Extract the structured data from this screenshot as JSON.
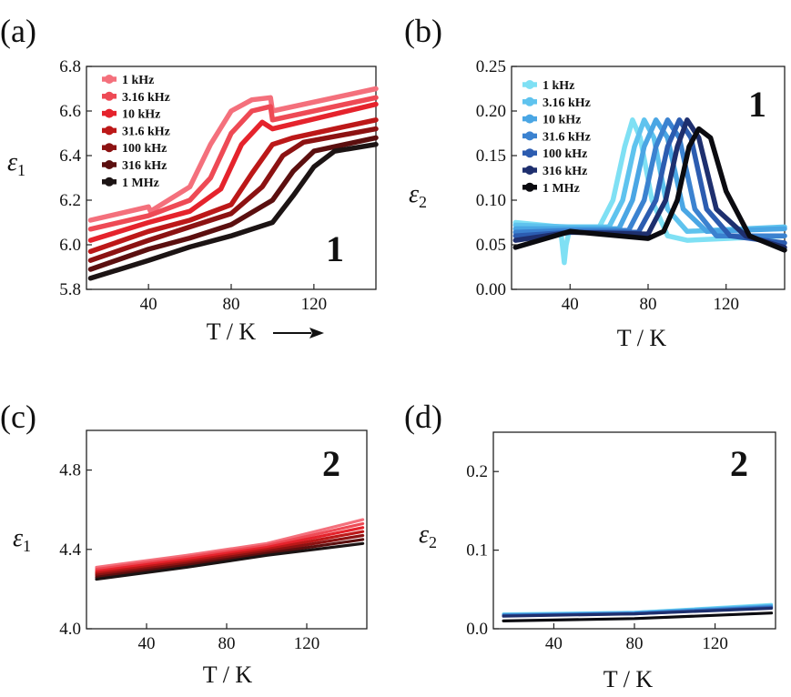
{
  "chart_data": [
    {
      "type": "line",
      "panel_label": "(a)",
      "compound": "1",
      "ylabel": "ε1",
      "xlabel": "T / K",
      "xlim": [
        10,
        150
      ],
      "ylim": [
        5.8,
        6.8
      ],
      "xticks": [
        "40",
        "80",
        "120"
      ],
      "yticks": [
        "5.8",
        "6.0",
        "6.2",
        "6.4",
        "6.6",
        "6.8"
      ],
      "legend_position": "top-left",
      "series": [
        {
          "name": "1 kHz",
          "color": "#f4707c",
          "x": [
            12,
            40,
            41,
            60,
            70,
            80,
            90,
            99,
            100,
            150
          ],
          "y": [
            6.11,
            6.17,
            6.15,
            6.26,
            6.45,
            6.6,
            6.65,
            6.66,
            6.6,
            6.7
          ]
        },
        {
          "name": "3.16 kHz",
          "color": "#ee4a55",
          "x": [
            12,
            40,
            60,
            70,
            80,
            90,
            99,
            100,
            150
          ],
          "y": [
            6.07,
            6.13,
            6.2,
            6.3,
            6.5,
            6.6,
            6.62,
            6.56,
            6.66
          ]
        },
        {
          "name": "10 kHz",
          "color": "#e5232c",
          "x": [
            12,
            40,
            60,
            75,
            85,
            95,
            100,
            150
          ],
          "y": [
            6.02,
            6.1,
            6.15,
            6.25,
            6.45,
            6.55,
            6.52,
            6.63
          ]
        },
        {
          "name": "31.6 kHz",
          "color": "#bc1818",
          "x": [
            12,
            40,
            60,
            80,
            90,
            100,
            110,
            150
          ],
          "y": [
            5.97,
            6.06,
            6.11,
            6.18,
            6.32,
            6.45,
            6.48,
            6.56
          ]
        },
        {
          "name": "100 kHz",
          "color": "#8c1212",
          "x": [
            12,
            40,
            60,
            80,
            95,
            105,
            115,
            150
          ],
          "y": [
            5.93,
            6.02,
            6.08,
            6.14,
            6.26,
            6.4,
            6.46,
            6.52
          ]
        },
        {
          "name": "316 kHz",
          "color": "#5b0f0f",
          "x": [
            12,
            40,
            60,
            80,
            100,
            110,
            120,
            150
          ],
          "y": [
            5.89,
            5.98,
            6.03,
            6.09,
            6.2,
            6.33,
            6.42,
            6.48
          ]
        },
        {
          "name": "1 MHz",
          "color": "#1c1414",
          "x": [
            12,
            40,
            60,
            80,
            100,
            110,
            120,
            130,
            150
          ],
          "y": [
            5.85,
            5.93,
            5.99,
            6.04,
            6.1,
            6.22,
            6.35,
            6.42,
            6.45
          ]
        }
      ]
    },
    {
      "type": "line",
      "panel_label": "(b)",
      "compound": "1",
      "ylabel": "ε2",
      "xlabel": "T / K",
      "xlim": [
        10,
        150
      ],
      "ylim": [
        0,
        0.25
      ],
      "xticks": [
        "40",
        "80",
        "120"
      ],
      "yticks": [
        "0.00",
        "0.05",
        "0.10",
        "0.15",
        "0.20",
        "0.25"
      ],
      "legend_position": "top-left",
      "series": [
        {
          "name": "1 kHz",
          "color": "#7fe0f4",
          "x": [
            12,
            35,
            37,
            38,
            40,
            55,
            62,
            68,
            72,
            76,
            82,
            90,
            100,
            150
          ],
          "y": [
            0.075,
            0.07,
            0.03,
            0.05,
            0.07,
            0.07,
            0.1,
            0.16,
            0.19,
            0.17,
            0.1,
            0.06,
            0.055,
            0.06
          ]
        },
        {
          "name": "3.16 kHz",
          "color": "#5fc3ee",
          "x": [
            12,
            40,
            60,
            67,
            73,
            78,
            83,
            90,
            100,
            150
          ],
          "y": [
            0.072,
            0.07,
            0.07,
            0.1,
            0.16,
            0.19,
            0.17,
            0.09,
            0.065,
            0.07
          ]
        },
        {
          "name": "10 kHz",
          "color": "#4aa6e4",
          "x": [
            12,
            40,
            65,
            72,
            78,
            84,
            90,
            98,
            110,
            150
          ],
          "y": [
            0.068,
            0.068,
            0.068,
            0.1,
            0.16,
            0.19,
            0.17,
            0.09,
            0.065,
            0.068
          ]
        },
        {
          "name": "31.6 kHz",
          "color": "#3b82d0",
          "x": [
            12,
            40,
            70,
            78,
            84,
            90,
            96,
            104,
            115,
            150
          ],
          "y": [
            0.064,
            0.066,
            0.066,
            0.1,
            0.16,
            0.19,
            0.17,
            0.09,
            0.06,
            0.06
          ]
        },
        {
          "name": "100 kHz",
          "color": "#2c5cb0",
          "x": [
            12,
            40,
            75,
            84,
            90,
            96,
            102,
            110,
            122,
            150
          ],
          "y": [
            0.06,
            0.064,
            0.064,
            0.1,
            0.16,
            0.19,
            0.17,
            0.09,
            0.06,
            0.052
          ]
        },
        {
          "name": "316 kHz",
          "color": "#1e2f6e",
          "x": [
            12,
            40,
            80,
            89,
            95,
            100,
            106,
            115,
            130,
            150
          ],
          "y": [
            0.055,
            0.064,
            0.062,
            0.1,
            0.16,
            0.19,
            0.17,
            0.09,
            0.06,
            0.047
          ]
        },
        {
          "name": "1 MHz",
          "color": "#0b0b10",
          "x": [
            12,
            40,
            80,
            88,
            95,
            101,
            106,
            112,
            120,
            132,
            150
          ],
          "y": [
            0.047,
            0.065,
            0.057,
            0.065,
            0.1,
            0.16,
            0.18,
            0.17,
            0.11,
            0.06,
            0.044
          ]
        }
      ]
    },
    {
      "type": "line",
      "panel_label": "(c)",
      "compound": "2",
      "ylabel": "ε1",
      "xlabel": "T / K",
      "xlim": [
        10,
        150
      ],
      "ylim": [
        4.0,
        5.0
      ],
      "xticks": [
        "40",
        "80",
        "120"
      ],
      "yticks": [
        "4.0",
        "4.4",
        "4.8"
      ],
      "series": [
        {
          "color": "#f4707c",
          "x": [
            15,
            60,
            100,
            148
          ],
          "y": [
            4.31,
            4.37,
            4.43,
            4.55
          ]
        },
        {
          "color": "#ee4a55",
          "x": [
            15,
            60,
            100,
            148
          ],
          "y": [
            4.3,
            4.36,
            4.42,
            4.53
          ]
        },
        {
          "color": "#e5232c",
          "x": [
            15,
            60,
            100,
            148
          ],
          "y": [
            4.29,
            4.35,
            4.41,
            4.51
          ]
        },
        {
          "color": "#bc1818",
          "x": [
            15,
            60,
            100,
            148
          ],
          "y": [
            4.28,
            4.34,
            4.4,
            4.49
          ]
        },
        {
          "color": "#8c1212",
          "x": [
            15,
            60,
            100,
            148
          ],
          "y": [
            4.27,
            4.33,
            4.39,
            4.47
          ]
        },
        {
          "color": "#5b0f0f",
          "x": [
            15,
            60,
            100,
            148
          ],
          "y": [
            4.26,
            4.32,
            4.38,
            4.45
          ]
        },
        {
          "color": "#1c1414",
          "x": [
            15,
            60,
            100,
            148
          ],
          "y": [
            4.25,
            4.31,
            4.37,
            4.43
          ]
        }
      ]
    },
    {
      "type": "line",
      "panel_label": "(d)",
      "compound": "2",
      "ylabel": "ε2",
      "xlabel": "T / K",
      "xlim": [
        10,
        150
      ],
      "ylim": [
        0,
        0.25
      ],
      "xticks": [
        "40",
        "80",
        "120"
      ],
      "yticks": [
        "0.0",
        "0.1",
        "0.2"
      ],
      "series": [
        {
          "color": "#7fe0f4",
          "x": [
            15,
            80,
            148
          ],
          "y": [
            0.019,
            0.021,
            0.031
          ]
        },
        {
          "color": "#5fc3ee",
          "x": [
            15,
            80,
            148
          ],
          "y": [
            0.018,
            0.021,
            0.03
          ]
        },
        {
          "color": "#4aa6e4",
          "x": [
            15,
            80,
            148
          ],
          "y": [
            0.018,
            0.02,
            0.029
          ]
        },
        {
          "color": "#3b82d0",
          "x": [
            15,
            80,
            148
          ],
          "y": [
            0.017,
            0.02,
            0.028
          ]
        },
        {
          "color": "#2c5cb0",
          "x": [
            15,
            80,
            148
          ],
          "y": [
            0.017,
            0.019,
            0.027
          ]
        },
        {
          "color": "#1e2f6e",
          "x": [
            15,
            80,
            148
          ],
          "y": [
            0.016,
            0.019,
            0.026
          ]
        },
        {
          "color": "#0b0b10",
          "x": [
            15,
            80,
            148
          ],
          "y": [
            0.01,
            0.013,
            0.02
          ]
        }
      ]
    }
  ]
}
